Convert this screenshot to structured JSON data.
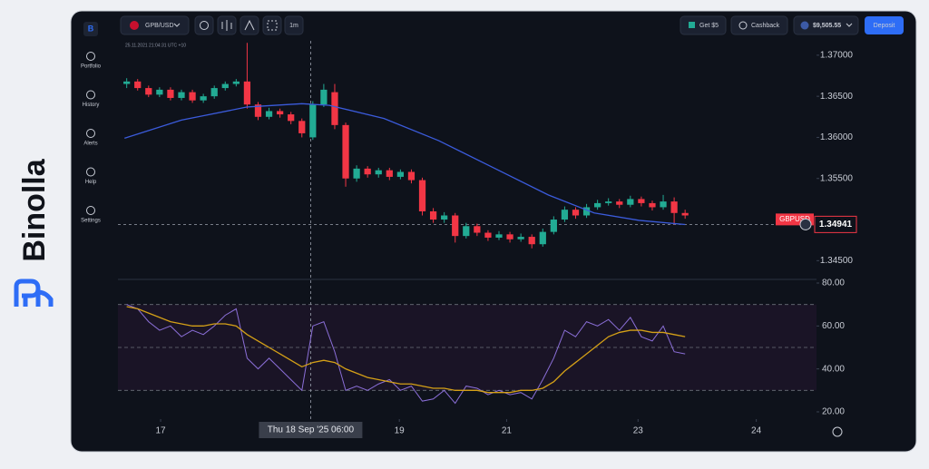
{
  "brand": "Binolla",
  "sidebar": {
    "items": [
      "Portfolio",
      "History",
      "Alerts",
      "Help",
      "Settings"
    ]
  },
  "topbar": {
    "pair": "GPB/USD",
    "timeframe": "1m",
    "bonus": "Get $5",
    "cashback": "Cashback",
    "balance": "$9,505.55",
    "deposit": "Deposit"
  },
  "chart_data": {
    "type": "candlestick",
    "info": "25.11.2021 21:04:31 UTC +10",
    "up_color": "#22ab94",
    "down_color": "#f23645",
    "xlim": [
      -0.8,
      63
    ],
    "xticks": [
      {
        "value": 3.1,
        "label": "17"
      },
      {
        "value": 24.9,
        "label": "19"
      },
      {
        "value": 34.7,
        "label": "21"
      },
      {
        "value": 46.7,
        "label": "23"
      },
      {
        "value": 57.5,
        "label": "24"
      }
    ],
    "crosshair": {
      "value": 16.8,
      "label": "Thu 18 Sep '25  06:00"
    },
    "ylim": [
      1.34305,
      1.37208
    ],
    "yticks": [
      {
        "value": 1.37,
        "label": "1.37000"
      },
      {
        "value": 1.365,
        "label": "1.36500"
      },
      {
        "value": 1.36,
        "label": "1.36000"
      },
      {
        "value": 1.355,
        "label": "1.35500"
      },
      {
        "value": 1.345,
        "label": "1.34500"
      }
    ],
    "current_price": {
      "value": 1.34941,
      "label": "1.34941",
      "symbol": "GBPUSD"
    },
    "ohlc": [
      [
        1.3665,
        1.3672,
        1.366,
        1.3668
      ],
      [
        1.3668,
        1.3671,
        1.3657,
        1.366
      ],
      [
        1.366,
        1.3663,
        1.3649,
        1.3652
      ],
      [
        1.3652,
        1.3661,
        1.3649,
        1.3658
      ],
      [
        1.3658,
        1.3661,
        1.3645,
        1.3648
      ],
      [
        1.3648,
        1.3658,
        1.3645,
        1.3655
      ],
      [
        1.3655,
        1.3658,
        1.3642,
        1.3645
      ],
      [
        1.3645,
        1.3653,
        1.3642,
        1.365
      ],
      [
        1.365,
        1.3663,
        1.3647,
        1.366
      ],
      [
        1.366,
        1.3668,
        1.3657,
        1.3665
      ],
      [
        1.3665,
        1.3671,
        1.3662,
        1.3668
      ],
      [
        1.3668,
        1.3715,
        1.3635,
        1.364
      ],
      [
        1.364,
        1.3643,
        1.3621,
        1.3625
      ],
      [
        1.3625,
        1.3636,
        1.3622,
        1.3632
      ],
      [
        1.3632,
        1.3635,
        1.3624,
        1.3628
      ],
      [
        1.3628,
        1.3631,
        1.3616,
        1.362
      ],
      [
        1.362,
        1.3623,
        1.36,
        1.3605
      ],
      [
        1.36,
        1.3644,
        1.3597,
        1.364
      ],
      [
        1.364,
        1.3665,
        1.3637,
        1.3658
      ],
      [
        1.3655,
        1.3665,
        1.361,
        1.3615
      ],
      [
        1.3615,
        1.3618,
        1.354,
        1.355
      ],
      [
        1.355,
        1.3566,
        1.3546,
        1.3562
      ],
      [
        1.3562,
        1.3565,
        1.3551,
        1.3555
      ],
      [
        1.3555,
        1.3563,
        1.3551,
        1.356
      ],
      [
        1.356,
        1.3563,
        1.3548,
        1.3552
      ],
      [
        1.3552,
        1.3561,
        1.3549,
        1.3558
      ],
      [
        1.3558,
        1.3561,
        1.3544,
        1.3548
      ],
      [
        1.3548,
        1.3551,
        1.3505,
        1.351
      ],
      [
        1.351,
        1.3514,
        1.3496,
        1.35
      ],
      [
        1.35,
        1.3509,
        1.3496,
        1.3505
      ],
      [
        1.3505,
        1.3508,
        1.3472,
        1.348
      ],
      [
        1.348,
        1.3496,
        1.3477,
        1.3492
      ],
      [
        1.3492,
        1.3495,
        1.348,
        1.3484
      ],
      [
        1.3484,
        1.3487,
        1.3474,
        1.3478
      ],
      [
        1.3478,
        1.3486,
        1.3475,
        1.3482
      ],
      [
        1.3482,
        1.3485,
        1.3472,
        1.3476
      ],
      [
        1.3476,
        1.3483,
        1.3473,
        1.3479
      ],
      [
        1.3479,
        1.3482,
        1.3465,
        1.347
      ],
      [
        1.347,
        1.3489,
        1.3467,
        1.3485
      ],
      [
        1.3485,
        1.3504,
        1.3482,
        1.35
      ],
      [
        1.35,
        1.3516,
        1.3497,
        1.3512
      ],
      [
        1.3512,
        1.3515,
        1.3501,
        1.3505
      ],
      [
        1.3505,
        1.3519,
        1.3502,
        1.3515
      ],
      [
        1.3515,
        1.3524,
        1.3512,
        1.352
      ],
      [
        1.352,
        1.3526,
        1.3517,
        1.3522
      ],
      [
        1.3522,
        1.3525,
        1.3514,
        1.3518
      ],
      [
        1.3518,
        1.3529,
        1.3515,
        1.3525
      ],
      [
        1.3525,
        1.3528,
        1.3516,
        1.352
      ],
      [
        1.352,
        1.3523,
        1.3511,
        1.3515
      ],
      [
        1.3515,
        1.353,
        1.3512,
        1.3522
      ],
      [
        1.3522,
        1.3527,
        1.3494,
        1.3508
      ],
      [
        1.3508,
        1.3512,
        1.3501,
        1.3505
      ]
    ],
    "ma": {
      "color": "#3b5bdb",
      "x": [
        -0.2,
        5,
        11,
        16,
        18.5,
        23.5,
        28.5,
        33.5,
        38.5,
        42.7,
        46.8,
        51
      ],
      "values": [
        1.3599,
        1.3621,
        1.3637,
        1.3641,
        1.3639,
        1.3623,
        1.3596,
        1.3563,
        1.353,
        1.3508,
        1.3499,
        1.3494
      ]
    },
    "rsi": {
      "ylim": [
        20,
        80
      ],
      "yticks": [
        {
          "value": 80,
          "label": "80.00"
        },
        {
          "value": 60,
          "label": "60.00"
        },
        {
          "value": 40,
          "label": "40.00"
        },
        {
          "value": 20,
          "label": "20.00"
        }
      ],
      "levels": [
        70,
        50,
        30
      ],
      "color": "#8b6fd8",
      "values": [
        70,
        68,
        62,
        58,
        60,
        55,
        58,
        56,
        60,
        65,
        68,
        45,
        40,
        45,
        40,
        35,
        30,
        60,
        62,
        48,
        30,
        32,
        30,
        33,
        35,
        30,
        32,
        25,
        26,
        30,
        24,
        32,
        31,
        28,
        30,
        28,
        29,
        26,
        35,
        45,
        58,
        55,
        62,
        60,
        63,
        58,
        64,
        55,
        53,
        60,
        48,
        47
      ],
      "ma_color": "#d4a017",
      "ma_values": [
        69,
        68,
        66,
        64,
        62,
        61,
        60,
        60,
        61,
        61,
        60,
        56,
        53,
        50,
        47,
        44,
        41,
        43,
        44,
        43,
        40,
        38,
        36,
        35,
        34,
        33,
        33,
        32,
        31,
        31,
        30,
        30,
        30,
        29,
        29,
        29,
        30,
        30,
        31,
        34,
        39,
        43,
        47,
        51,
        55,
        57,
        58,
        58,
        57,
        57,
        56,
        55
      ]
    }
  }
}
